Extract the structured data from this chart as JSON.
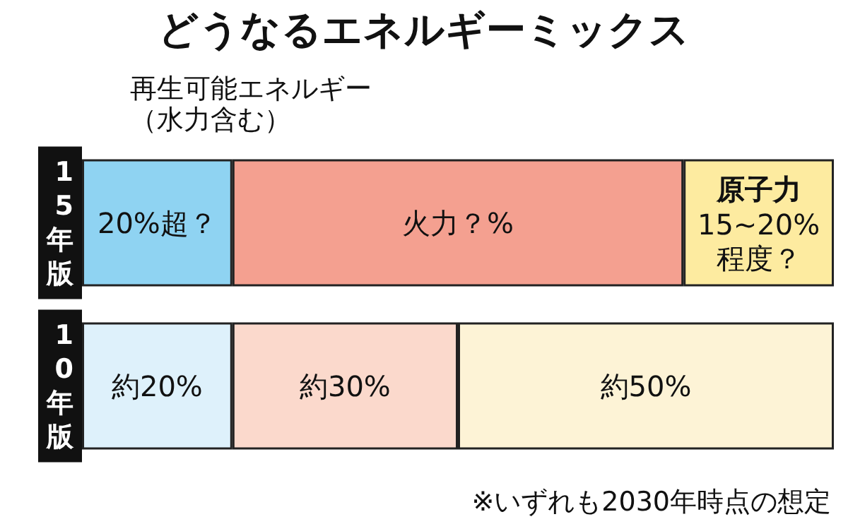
{
  "chart_data": {
    "type": "bar",
    "title": "どうなるエネルギーミックス",
    "orientation": "horizontal",
    "stacked": true,
    "legend": false,
    "categories": [
      "15年版",
      "10年版"
    ],
    "series": [
      {
        "name": "再生可能エネルギー（水力含む）",
        "colors": [
          "#8fd3f2",
          "#def1fb"
        ],
        "values": [
          20,
          20
        ],
        "value_labels": [
          "20%超？",
          "約20%"
        ]
      },
      {
        "colors": [
          "#f4a090",
          "#fbd9cc"
        ],
        "values": [
          60,
          30
        ],
        "value_labels": [
          "火力？%",
          "約30%"
        ]
      },
      {
        "name": "原子力",
        "colors": [
          "#fdeba0",
          "#fdf3d6"
        ],
        "values": [
          20,
          50
        ],
        "value_labels": [
          "15~20%\n程度？",
          "約50%"
        ]
      }
    ],
    "annotations": [
      "※いずれも2030年時点の想定"
    ]
  }
}
